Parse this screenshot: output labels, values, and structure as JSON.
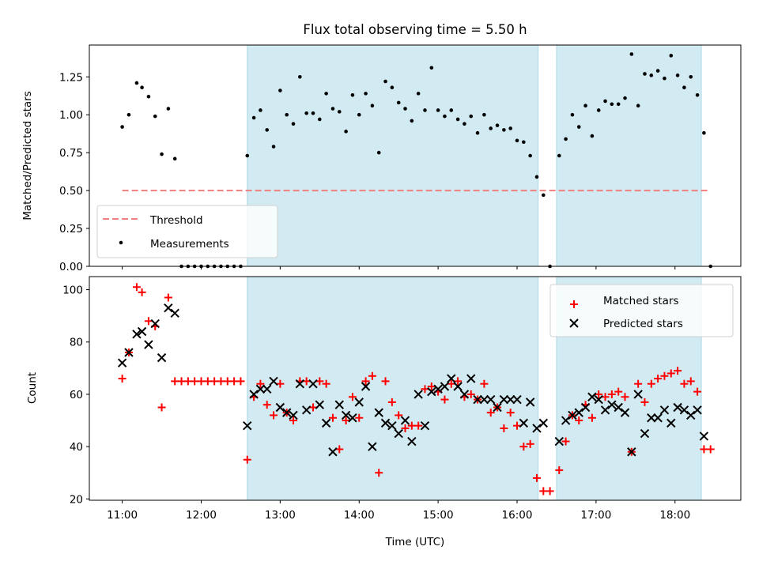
{
  "chart_data": [
    {
      "type": "scatter",
      "title": "Flux total observing time = 5.50 h",
      "xlabel": "",
      "ylabel": "Matched/Predicted stars",
      "xlim": [
        "10:35",
        "18:50"
      ],
      "ylim": [
        0,
        1.46
      ],
      "x_ticks": [
        "11:00",
        "12:00",
        "13:00",
        "14:00",
        "15:00",
        "16:00",
        "17:00",
        "18:00"
      ],
      "y_ticks": [
        0.0,
        0.25,
        0.5,
        0.75,
        1.0,
        1.25
      ],
      "y_tick_labels": [
        "0.00",
        "0.25",
        "0.50",
        "0.75",
        "1.00",
        "1.25"
      ],
      "shaded_intervals": [
        [
          "12:35",
          "16:16"
        ],
        [
          "16:30",
          "18:20"
        ]
      ],
      "shade_color": "#add8e6",
      "threshold": {
        "name": "Threshold",
        "value": 0.5,
        "x_range": [
          "11:00",
          "18:25"
        ],
        "color": "#f08080"
      },
      "legend": {
        "position": "lower-left",
        "entries": [
          "Threshold",
          "Measurements"
        ]
      },
      "series": [
        {
          "name": "Measurements",
          "marker": "dot",
          "color": "#000000",
          "x": [
            "11:00",
            "11:05",
            "11:11",
            "11:15",
            "11:20",
            "11:25",
            "11:30",
            "11:35",
            "11:40",
            "11:45",
            "11:50",
            "11:55",
            "12:00",
            "12:05",
            "12:10",
            "12:15",
            "12:20",
            "12:25",
            "12:30",
            "12:35",
            "12:40",
            "12:45",
            "12:50",
            "12:55",
            "13:00",
            "13:05",
            "13:10",
            "13:15",
            "13:20",
            "13:25",
            "13:30",
            "13:35",
            "13:40",
            "13:45",
            "13:50",
            "13:55",
            "14:00",
            "14:05",
            "14:10",
            "14:15",
            "14:20",
            "14:25",
            "14:30",
            "14:35",
            "14:40",
            "14:45",
            "14:50",
            "14:55",
            "15:00",
            "15:05",
            "15:10",
            "15:15",
            "15:20",
            "15:25",
            "15:30",
            "15:35",
            "15:40",
            "15:45",
            "15:50",
            "15:55",
            "16:00",
            "16:05",
            "16:10",
            "16:15",
            "16:20",
            "16:25",
            "16:32",
            "16:37",
            "16:42",
            "16:47",
            "16:52",
            "16:57",
            "17:02",
            "17:07",
            "17:12",
            "17:17",
            "17:22",
            "17:27",
            "17:32",
            "17:37",
            "17:42",
            "17:47",
            "17:52",
            "17:57",
            "18:02",
            "18:07",
            "18:12",
            "18:17",
            "18:22",
            "18:27"
          ],
          "y": [
            0.92,
            1.0,
            1.21,
            1.18,
            1.12,
            0.99,
            0.74,
            1.04,
            0.71,
            0,
            0,
            0,
            0,
            0,
            0,
            0,
            0,
            0,
            0,
            0.73,
            0.98,
            1.03,
            0.9,
            0.79,
            1.16,
            1.0,
            0.94,
            1.25,
            1.01,
            1.01,
            0.97,
            1.14,
            1.04,
            1.02,
            0.89,
            1.13,
            1.0,
            1.14,
            1.06,
            0.75,
            1.22,
            1.18,
            1.08,
            1.04,
            0.96,
            1.14,
            1.03,
            1.31,
            1.03,
            0.99,
            1.03,
            0.97,
            0.94,
            0.99,
            0.88,
            1.0,
            0.91,
            0.93,
            0.9,
            0.91,
            0.83,
            0.82,
            0.73,
            0.59,
            0.47,
            0,
            0.73,
            0.84,
            1.0,
            0.92,
            1.06,
            0.86,
            1.03,
            1.09,
            1.07,
            1.07,
            1.11,
            1.4,
            1.06,
            1.27,
            1.26,
            1.29,
            1.24,
            1.39,
            1.26,
            1.18,
            1.25,
            1.13,
            0.88,
            0
          ]
        }
      ]
    },
    {
      "type": "scatter",
      "title": "",
      "xlabel": "Time (UTC)",
      "ylabel": "Count",
      "xlim": [
        "10:35",
        "18:50"
      ],
      "ylim": [
        19.5,
        105
      ],
      "x_ticks": [
        "11:00",
        "12:00",
        "13:00",
        "14:00",
        "15:00",
        "16:00",
        "17:00",
        "18:00"
      ],
      "y_ticks": [
        20,
        40,
        60,
        80,
        100
      ],
      "shaded_intervals": [
        [
          "12:35",
          "16:16"
        ],
        [
          "16:30",
          "18:20"
        ]
      ],
      "shade_color": "#add8e6",
      "legend": {
        "position": "top-right",
        "entries": [
          "Matched stars",
          "Predicted stars"
        ]
      },
      "series": [
        {
          "name": "Matched stars",
          "marker": "plus",
          "color": "#ff0000",
          "x": [
            "11:00",
            "11:05",
            "11:11",
            "11:15",
            "11:20",
            "11:25",
            "11:30",
            "11:35",
            "11:40",
            "11:45",
            "11:50",
            "11:55",
            "12:00",
            "12:05",
            "12:10",
            "12:15",
            "12:20",
            "12:25",
            "12:30",
            "12:35",
            "12:40",
            "12:45",
            "12:50",
            "12:55",
            "13:00",
            "13:05",
            "13:10",
            "13:15",
            "13:20",
            "13:25",
            "13:30",
            "13:35",
            "13:40",
            "13:45",
            "13:50",
            "13:55",
            "14:00",
            "14:05",
            "14:10",
            "14:15",
            "14:20",
            "14:25",
            "14:30",
            "14:35",
            "14:40",
            "14:45",
            "14:50",
            "14:55",
            "15:00",
            "15:05",
            "15:10",
            "15:15",
            "15:20",
            "15:25",
            "15:30",
            "15:35",
            "15:40",
            "15:45",
            "15:50",
            "15:55",
            "16:00",
            "16:05",
            "16:10",
            "16:15",
            "16:20",
            "16:25",
            "16:32",
            "16:37",
            "16:42",
            "16:47",
            "16:52",
            "16:57",
            "17:02",
            "17:07",
            "17:12",
            "17:17",
            "17:22",
            "17:27",
            "17:32",
            "17:37",
            "17:42",
            "17:47",
            "17:52",
            "17:57",
            "18:02",
            "18:07",
            "18:12",
            "18:17",
            "18:22",
            "18:27"
          ],
          "y": [
            66,
            76,
            101,
            99,
            88,
            86,
            55,
            97,
            65,
            65,
            65,
            65,
            65,
            65,
            65,
            65,
            65,
            65,
            65,
            35,
            59,
            64,
            56,
            52,
            64,
            53,
            50,
            65,
            65,
            55,
            65,
            64,
            51,
            39,
            50,
            59,
            51,
            65,
            67,
            30,
            65,
            57,
            52,
            47,
            48,
            48,
            62,
            63,
            61,
            58,
            64,
            65,
            59,
            60,
            58,
            64,
            53,
            55,
            47,
            53,
            48,
            40,
            41,
            28,
            23,
            23,
            31,
            42,
            52,
            50,
            56,
            51,
            60,
            59,
            60,
            61,
            59,
            38,
            64,
            57,
            64,
            66,
            67,
            68,
            69,
            64,
            65,
            61,
            39,
            39
          ]
        },
        {
          "name": "Predicted stars",
          "marker": "x",
          "color": "#000000",
          "x": [
            "11:00",
            "11:05",
            "11:11",
            "11:15",
            "11:20",
            "11:25",
            "11:30",
            "11:35",
            "11:40",
            "12:35",
            "12:40",
            "12:45",
            "12:50",
            "12:55",
            "13:00",
            "13:05",
            "13:10",
            "13:15",
            "13:20",
            "13:25",
            "13:30",
            "13:35",
            "13:40",
            "13:45",
            "13:50",
            "13:55",
            "14:00",
            "14:05",
            "14:10",
            "14:15",
            "14:20",
            "14:25",
            "14:30",
            "14:35",
            "14:40",
            "14:45",
            "14:50",
            "14:55",
            "15:00",
            "15:05",
            "15:10",
            "15:15",
            "15:20",
            "15:25",
            "15:30",
            "15:35",
            "15:40",
            "15:45",
            "15:50",
            "15:55",
            "16:00",
            "16:05",
            "16:10",
            "16:15",
            "16:20",
            "16:32",
            "16:37",
            "16:42",
            "16:47",
            "16:52",
            "16:57",
            "17:02",
            "17:07",
            "17:12",
            "17:17",
            "17:22",
            "17:27",
            "17:32",
            "17:37",
            "17:42",
            "17:47",
            "17:52",
            "17:57",
            "18:02",
            "18:07",
            "18:12",
            "18:17",
            "18:22"
          ],
          "y": [
            72,
            76,
            83,
            84,
            79,
            87,
            74,
            93,
            91,
            48,
            60,
            62,
            62,
            65,
            55,
            53,
            52,
            64,
            54,
            64,
            56,
            49,
            38,
            56,
            52,
            51,
            57,
            63,
            40,
            53,
            49,
            48,
            45,
            50,
            42,
            60,
            48,
            61,
            62,
            63,
            66,
            63,
            60,
            66,
            58,
            58,
            58,
            55,
            58,
            58,
            58,
            49,
            57,
            47,
            49,
            42,
            50,
            52,
            53,
            55,
            59,
            58,
            54,
            56,
            55,
            53,
            38,
            60,
            45,
            51,
            51,
            54,
            49,
            55,
            54,
            52,
            54,
            44
          ]
        }
      ]
    }
  ]
}
